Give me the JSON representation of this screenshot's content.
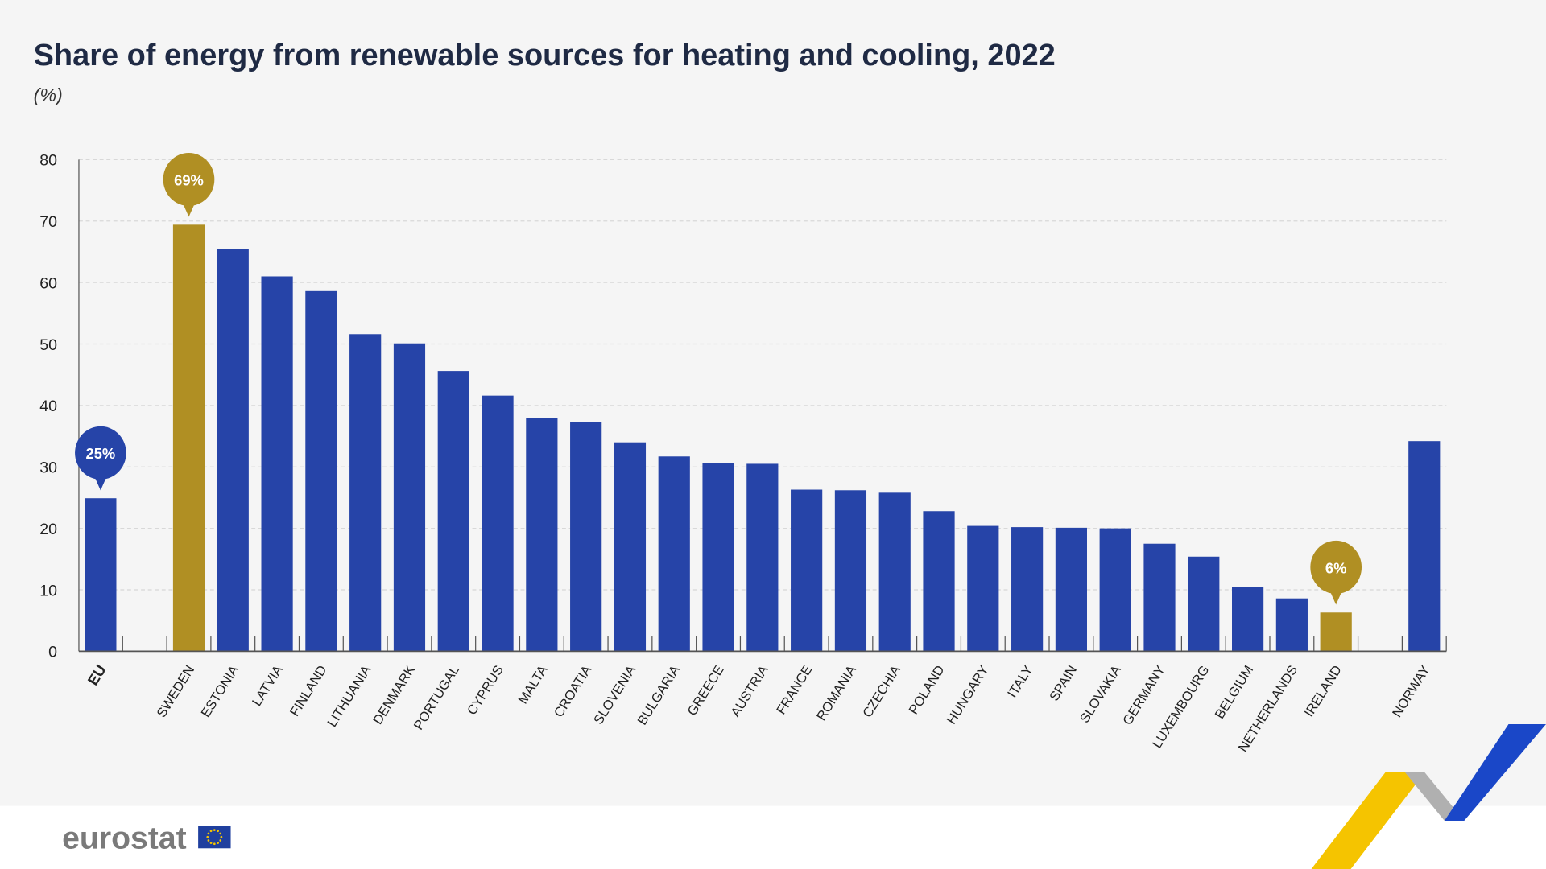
{
  "chart_data": {
    "type": "bar",
    "title": "Share of energy from renewable sources for heating and cooling, 2022",
    "unit": "(%)",
    "ylim": [
      0,
      80
    ],
    "yticks": [
      0,
      10,
      20,
      30,
      40,
      50,
      60,
      70,
      80
    ],
    "grid": true,
    "categories": [
      "EU",
      "SWEDEN",
      "ESTONIA",
      "LATVIA",
      "FINLAND",
      "LITHUANIA",
      "DENMARK",
      "PORTUGAL",
      "CYPRUS",
      "MALTA",
      "CROATIA",
      "SLOVENIA",
      "BULGARIA",
      "GREECE",
      "AUSTRIA",
      "FRANCE",
      "ROMANIA",
      "CZECHIA",
      "POLAND",
      "HUNGARY",
      "ITALY",
      "SPAIN",
      "SLOVAKIA",
      "GERMANY",
      "LUXEMBOURG",
      "BELGIUM",
      "NETHERLANDS",
      "IRELAND",
      "NORWAY"
    ],
    "values": [
      24.9,
      69.4,
      65.4,
      61.0,
      58.6,
      51.6,
      50.1,
      45.6,
      41.6,
      38.0,
      37.3,
      34.0,
      31.7,
      30.6,
      30.5,
      26.3,
      26.2,
      25.8,
      22.8,
      20.4,
      20.2,
      20.1,
      20.0,
      17.5,
      15.4,
      10.4,
      8.6,
      6.3,
      34.2
    ],
    "highlight": {
      "SWEDEN": "gold",
      "IRELAND": "gold"
    },
    "annotations": [
      {
        "category": "EU",
        "text": "25%",
        "color": "#2644a8"
      },
      {
        "category": "SWEDEN",
        "text": "69%",
        "color": "#b08f23"
      },
      {
        "category": "IRELAND",
        "text": "6%",
        "color": "#b08f23"
      }
    ],
    "colors": {
      "bar": "#2644a8",
      "highlight": "#b08f23",
      "axis": "#555555",
      "grid": "#d8d8d8"
    }
  },
  "footer": {
    "logo_text": "eurostat"
  }
}
